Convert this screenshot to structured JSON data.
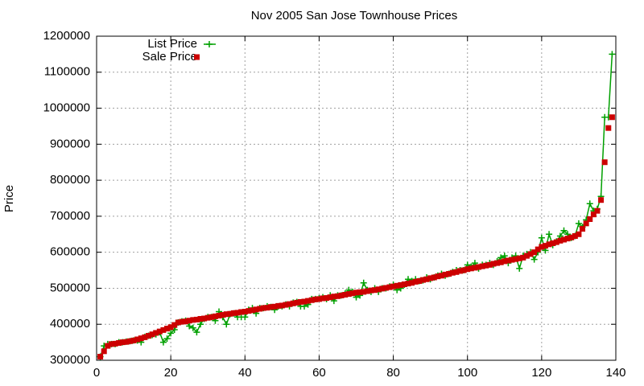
{
  "chart_data": {
    "type": "line",
    "title": "Nov 2005 San Jose Townhouse Prices",
    "ylabel": "Price",
    "x": [
      1,
      2,
      3,
      4,
      5,
      6,
      7,
      8,
      9,
      10,
      11,
      12,
      13,
      14,
      15,
      16,
      17,
      18,
      19,
      20,
      21,
      22,
      23,
      24,
      25,
      26,
      27,
      28,
      29,
      30,
      31,
      32,
      33,
      34,
      35,
      36,
      37,
      38,
      39,
      40,
      41,
      42,
      43,
      44,
      45,
      46,
      47,
      48,
      49,
      50,
      51,
      52,
      53,
      54,
      55,
      56,
      57,
      58,
      59,
      60,
      61,
      62,
      63,
      64,
      65,
      66,
      67,
      68,
      69,
      70,
      71,
      72,
      73,
      74,
      75,
      76,
      77,
      78,
      79,
      80,
      81,
      82,
      83,
      84,
      85,
      86,
      87,
      88,
      89,
      90,
      91,
      92,
      93,
      94,
      95,
      96,
      97,
      98,
      99,
      100,
      101,
      102,
      103,
      104,
      105,
      106,
      107,
      108,
      109,
      110,
      111,
      112,
      113,
      114,
      115,
      116,
      117,
      118,
      119,
      120,
      121,
      122,
      123,
      124,
      125,
      126,
      127,
      128,
      129,
      130,
      131,
      132,
      133,
      134,
      135,
      136,
      137,
      138,
      139
    ],
    "series": [
      {
        "name": "List Price",
        "color": "#00a000",
        "style": "linespoints",
        "values": [
          310000,
          340000,
          345000,
          345000,
          345000,
          350000,
          350000,
          352000,
          353000,
          355000,
          355000,
          350000,
          365000,
          368000,
          370000,
          372000,
          378000,
          350000,
          360000,
          375000,
          385000,
          405000,
          408000,
          410000,
          395000,
          390000,
          378000,
          400000,
          415000,
          420000,
          420000,
          410000,
          435000,
          420000,
          400000,
          428000,
          430000,
          420000,
          420000,
          420000,
          440000,
          445000,
          430000,
          445000,
          445000,
          450000,
          448000,
          440000,
          450000,
          450000,
          455000,
          450000,
          460000,
          462000,
          450000,
          450000,
          455000,
          470000,
          470000,
          472000,
          475000,
          470000,
          480000,
          465000,
          480000,
          480000,
          485000,
          495000,
          490000,
          475000,
          480000,
          515000,
          495000,
          490000,
          500000,
          490000,
          500000,
          500000,
          505000,
          510000,
          495000,
          500000,
          510000,
          525000,
          520000,
          525000,
          520000,
          522000,
          530000,
          525000,
          530000,
          535000,
          540000,
          535000,
          540000,
          545000,
          550000,
          550000,
          550000,
          565000,
          560000,
          570000,
          555000,
          565000,
          565000,
          570000,
          565000,
          575000,
          585000,
          590000,
          570000,
          585000,
          590000,
          555000,
          590000,
          595000,
          600000,
          580000,
          600000,
          640000,
          605000,
          650000,
          620000,
          630000,
          645000,
          660000,
          650000,
          640000,
          645000,
          680000,
          670000,
          690000,
          735000,
          715000,
          720000,
          755000,
          975000,
          975000,
          1150000
        ]
      },
      {
        "name": "Sale Price",
        "color": "#cc0000",
        "style": "points",
        "values": [
          310000,
          325000,
          340000,
          345000,
          346000,
          348000,
          350000,
          351000,
          353000,
          355000,
          358000,
          361000,
          364000,
          368000,
          372000,
          376000,
          380000,
          384000,
          388000,
          392000,
          398000,
          405000,
          407000,
          408000,
          410000,
          412000,
          413000,
          415000,
          416000,
          418000,
          420000,
          422000,
          424000,
          426000,
          428000,
          429000,
          431000,
          432000,
          434000,
          435000,
          437000,
          439000,
          441000,
          443000,
          445000,
          446000,
          448000,
          449000,
          451000,
          452000,
          454000,
          456000,
          458000,
          460000,
          462000,
          463000,
          465000,
          467000,
          469000,
          470000,
          472000,
          473000,
          475000,
          477000,
          478000,
          480000,
          482000,
          484000,
          486000,
          488000,
          489000,
          490000,
          492000,
          494000,
          495000,
          497000,
          499000,
          501000,
          503000,
          505000,
          507000,
          509000,
          511000,
          513000,
          515000,
          518000,
          520000,
          523000,
          525000,
          528000,
          530000,
          533000,
          535000,
          538000,
          540000,
          543000,
          545000,
          548000,
          550000,
          553000,
          555000,
          557000,
          559000,
          561000,
          563000,
          565000,
          568000,
          570000,
          572000,
          575000,
          577000,
          579000,
          581000,
          583000,
          585000,
          590000,
          595000,
          600000,
          608000,
          615000,
          618000,
          622000,
          625000,
          628000,
          632000,
          635000,
          638000,
          641000,
          645000,
          650000,
          665000,
          680000,
          692000,
          705000,
          715000,
          745000,
          850000,
          945000,
          975000
        ]
      }
    ],
    "xlim": [
      0,
      140
    ],
    "xticks": [
      0,
      20,
      40,
      60,
      80,
      100,
      120,
      140
    ],
    "ylim": [
      300000,
      1200000
    ],
    "yticks": [
      300000,
      400000,
      500000,
      600000,
      700000,
      800000,
      900000,
      1000000,
      1100000,
      1200000
    ],
    "grid": true,
    "legend": "top-left"
  }
}
